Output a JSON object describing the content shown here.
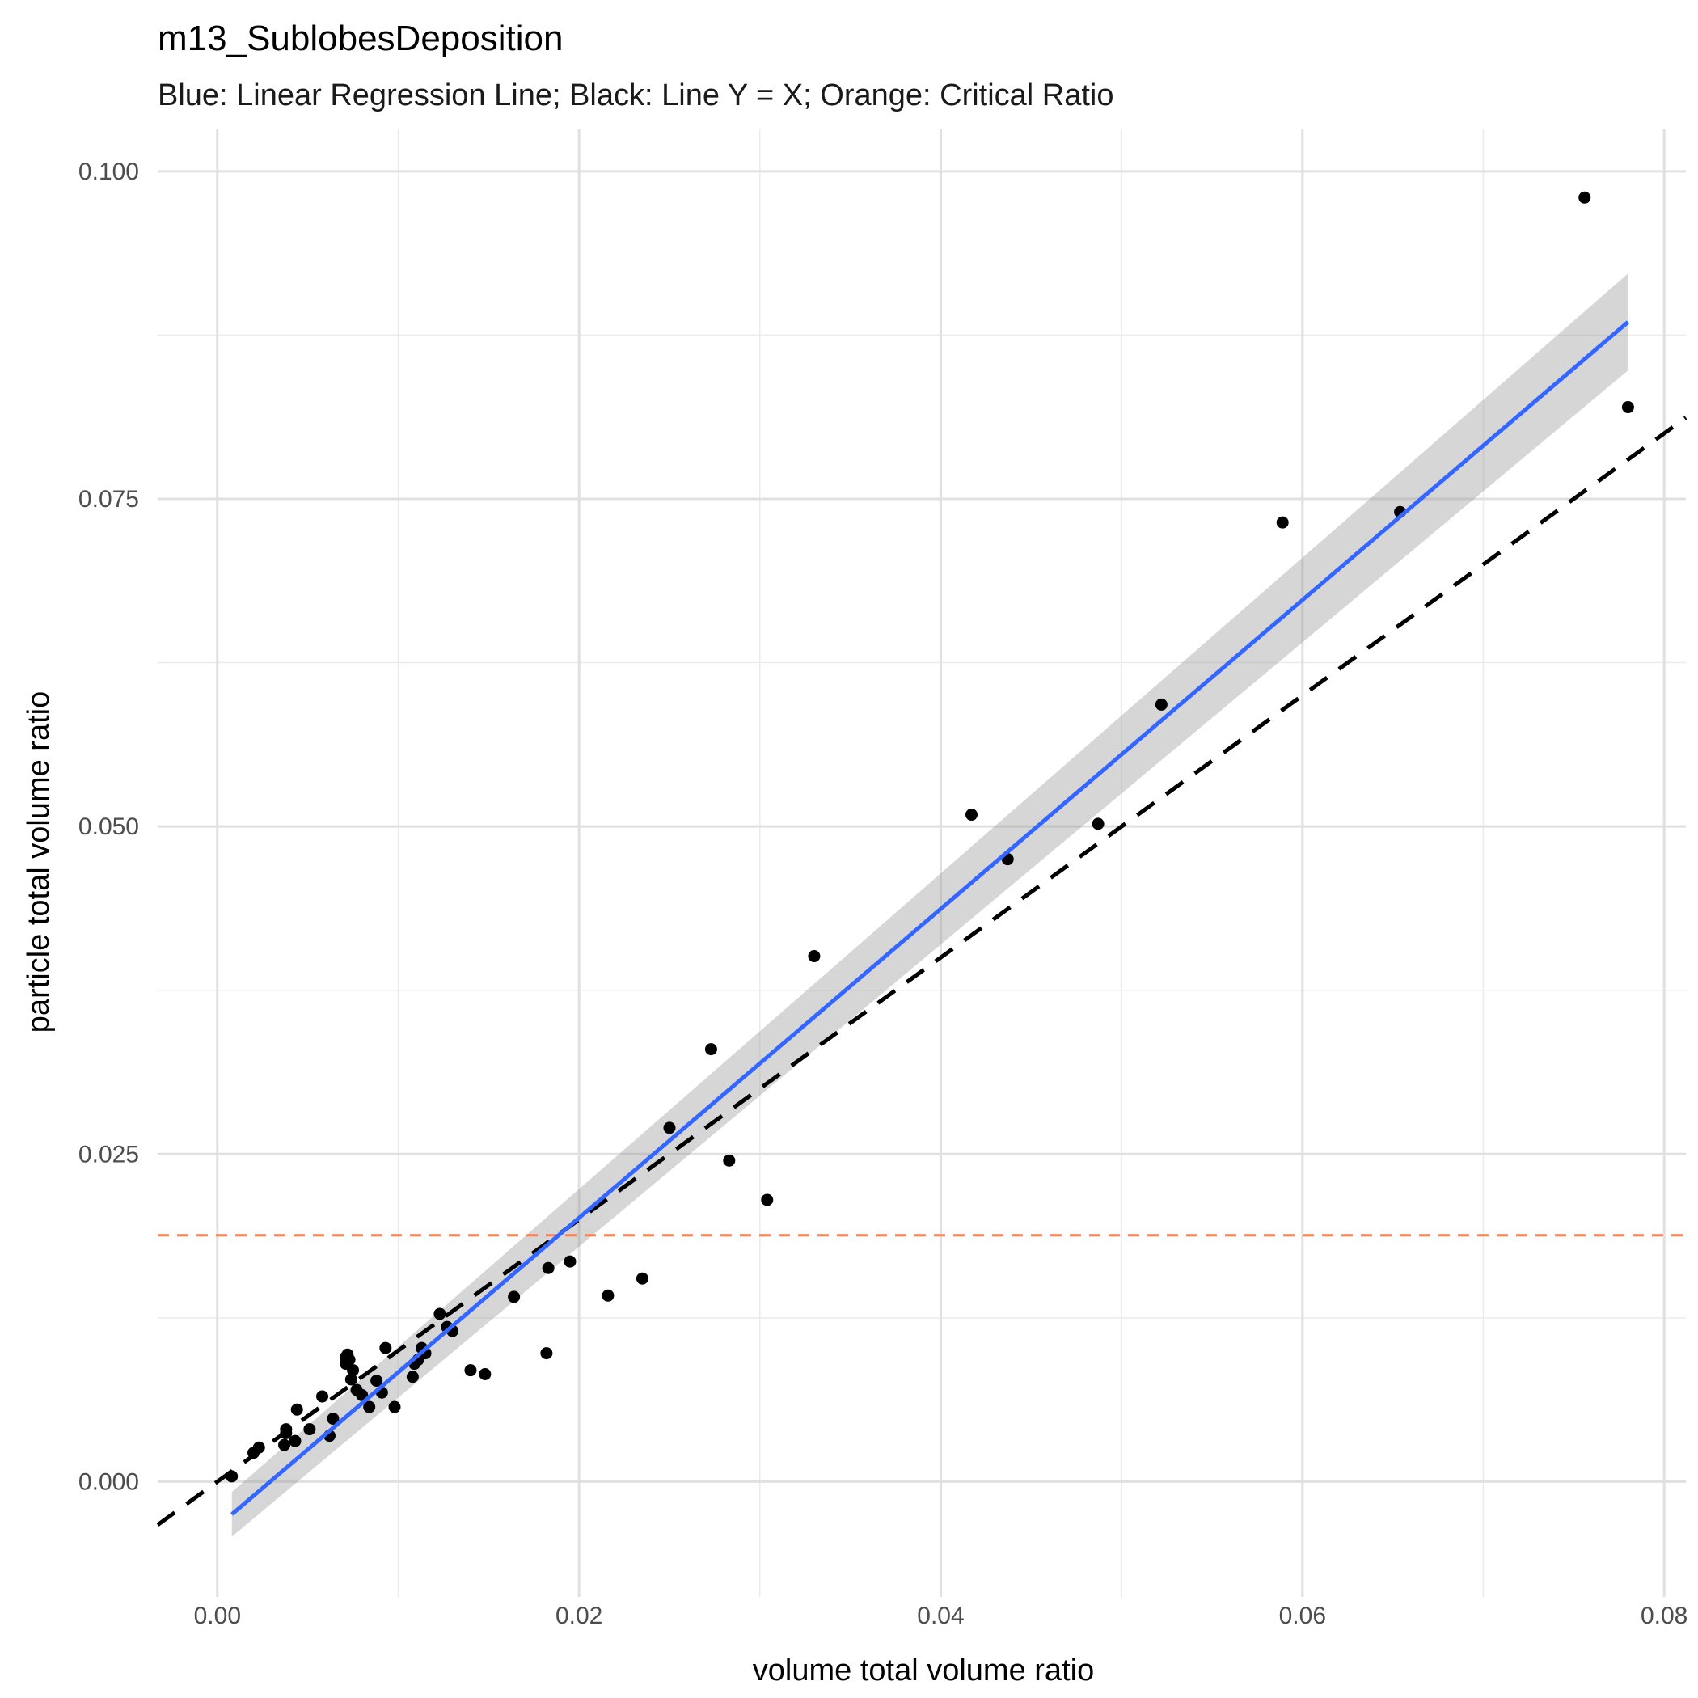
{
  "chart_data": {
    "type": "scatter",
    "title": "m13_SublobesDeposition",
    "subtitle": "Blue: Linear Regression Line;  Black: Line Y = X; Orange: Critical Ratio",
    "xlabel": "volume total volume ratio",
    "ylabel": "particle total volume ratio",
    "xlim": [
      -0.0033,
      0.0812
    ],
    "ylim": [
      -0.0088,
      0.1032
    ],
    "x_ticks": [
      0.0,
      0.02,
      0.04,
      0.06,
      0.08
    ],
    "x_tick_labels": [
      "0.00",
      "0.02",
      "0.04",
      "0.06",
      "0.08"
    ],
    "y_ticks": [
      0.0,
      0.025,
      0.05,
      0.075,
      0.1
    ],
    "y_tick_labels": [
      "0.000",
      "0.025",
      "0.050",
      "0.075",
      "0.100"
    ],
    "grid": true,
    "points": {
      "name": "observations",
      "color": "#000000",
      "x": [
        0.0008,
        0.002,
        0.0023,
        0.0037,
        0.0038,
        0.0038,
        0.0043,
        0.0044,
        0.0051,
        0.0058,
        0.0062,
        0.0064,
        0.0071,
        0.0071,
        0.0072,
        0.0073,
        0.0074,
        0.0075,
        0.0077,
        0.008,
        0.0084,
        0.0088,
        0.0091,
        0.0093,
        0.0098,
        0.0108,
        0.0109,
        0.0111,
        0.0113,
        0.0115,
        0.0123,
        0.0127,
        0.013,
        0.014,
        0.0148,
        0.0164,
        0.0182,
        0.0183,
        0.0195,
        0.0216,
        0.0235,
        0.025,
        0.0273,
        0.0283,
        0.0304,
        0.033,
        0.0417,
        0.0437,
        0.0487,
        0.0522,
        0.0589,
        0.0654,
        0.0756,
        0.078
      ],
      "y": [
        0.0004,
        0.0022,
        0.0026,
        0.0028,
        0.0037,
        0.004,
        0.0031,
        0.0055,
        0.004,
        0.0065,
        0.0035,
        0.0048,
        0.0095,
        0.009,
        0.0097,
        0.0093,
        0.0078,
        0.0085,
        0.007,
        0.0066,
        0.0057,
        0.0077,
        0.0068,
        0.0102,
        0.0057,
        0.008,
        0.009,
        0.0093,
        0.0102,
        0.0098,
        0.0128,
        0.0118,
        0.0115,
        0.0085,
        0.0082,
        0.0141,
        0.0098,
        0.0163,
        0.0168,
        0.0142,
        0.0155,
        0.027,
        0.033,
        0.0245,
        0.0215,
        0.0401,
        0.0509,
        0.0475,
        0.0502,
        0.0593,
        0.0732,
        0.074,
        0.098,
        0.082
      ]
    },
    "regression_line": {
      "name": "Linear Regression Line",
      "color": "#3366FF",
      "x": [
        0.0008,
        0.078
      ],
      "y": [
        -0.0025,
        0.0885
      ],
      "ci_band_color": "#999999",
      "ci_lower": [
        -0.0042,
        0.0848
      ],
      "ci_upper": [
        -0.0008,
        0.0922
      ]
    },
    "identity_line": {
      "name": "Line Y = X",
      "color": "#000000",
      "style": "dashed",
      "x": [
        -0.0033,
        0.0812
      ],
      "y": [
        -0.0033,
        0.0812
      ]
    },
    "critical_ratio": {
      "name": "Critical Ratio",
      "color": "#FF7F50",
      "style": "dashed",
      "y": 0.0188
    }
  }
}
